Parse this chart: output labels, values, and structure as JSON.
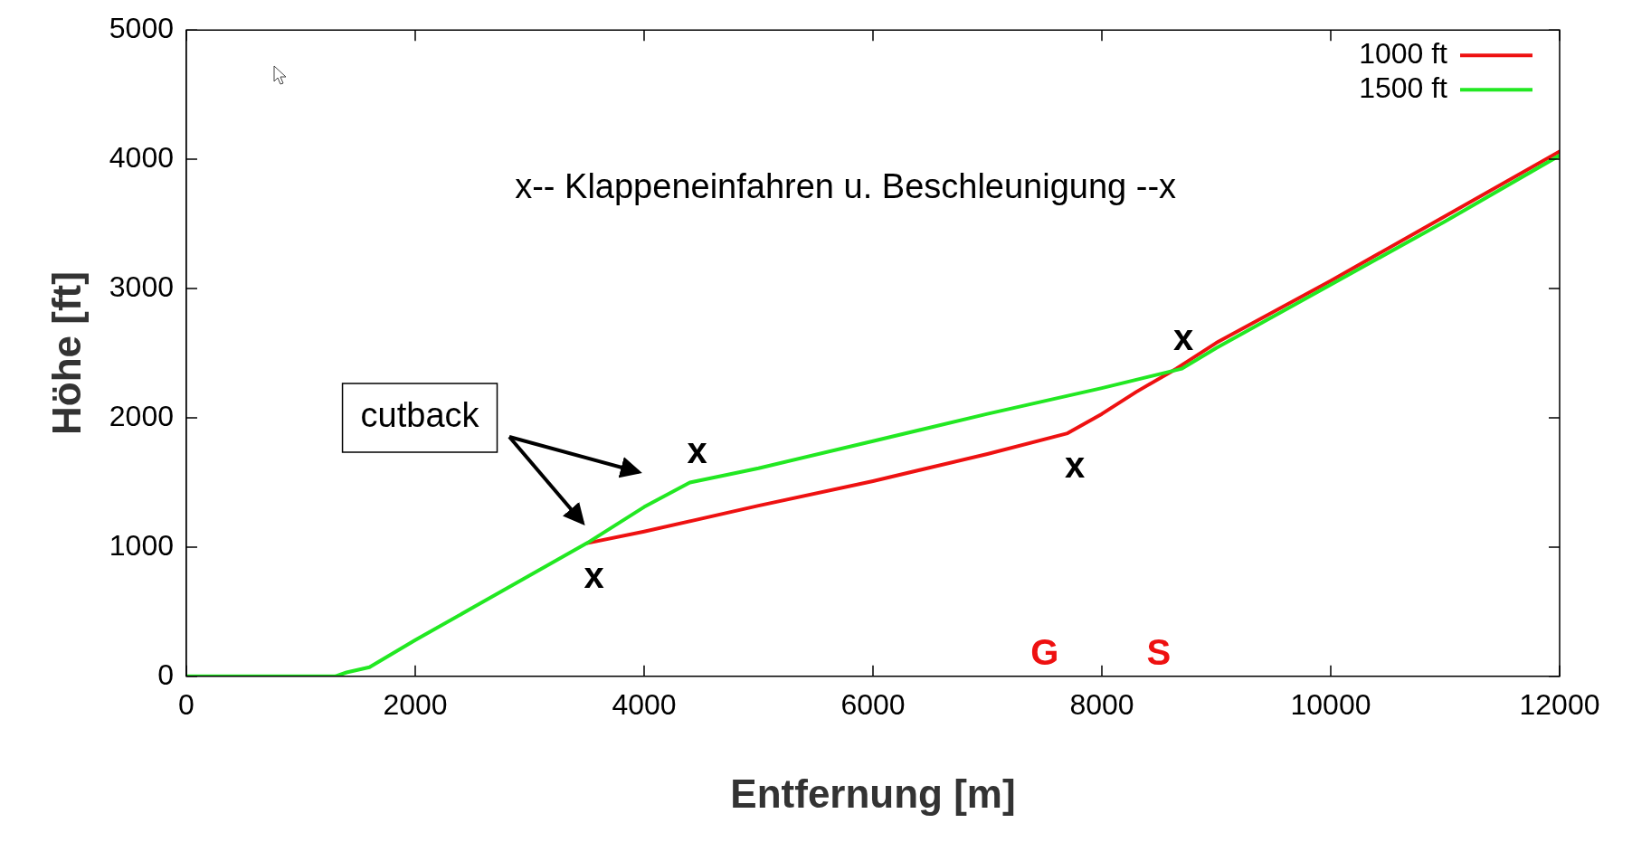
{
  "chart_data": {
    "type": "line",
    "xlabel": "Entfernung [m]",
    "ylabel": "Höhe [ft]",
    "xlim": [
      0,
      12000
    ],
    "xticks": [
      0,
      2000,
      4000,
      6000,
      8000,
      10000,
      12000
    ],
    "ylim": [
      0,
      5000
    ],
    "yticks": [
      0,
      1000,
      2000,
      3000,
      4000,
      5000
    ],
    "grid": false,
    "legend": "top right",
    "marker": "none",
    "line_style": "solid",
    "series": [
      {
        "name": "1000 ft",
        "color": "#ee1111",
        "x": [
          3500,
          4000,
          5000,
          6000,
          7000,
          7700,
          8000,
          8300,
          8650,
          9000,
          10000,
          11000,
          12000
        ],
        "values": [
          1030,
          1120,
          1320,
          1510,
          1720,
          1880,
          2030,
          2200,
          2380,
          2580,
          3060,
          3560,
          4060
        ]
      },
      {
        "name": "1500 ft",
        "color": "#22e822",
        "x": [
          0,
          1300,
          1400,
          1600,
          2000,
          2500,
          3000,
          3500,
          4000,
          4400,
          5000,
          6000,
          7000,
          8000,
          8700,
          9000,
          10000,
          11000,
          12000
        ],
        "values": [
          0,
          0,
          30,
          70,
          280,
          530,
          780,
          1030,
          1310,
          1500,
          1610,
          1820,
          2030,
          2230,
          2380,
          2540,
          3030,
          3520,
          4030
        ]
      }
    ],
    "annotations": [
      "x-- Klappeneinfahren u. Beschleunigung --x",
      "cutback",
      {
        "text": "x",
        "x": 3500,
        "y": 1030
      },
      {
        "text": "x",
        "x": 4400,
        "y": 1500
      },
      {
        "text": "x",
        "x": 7700,
        "y": 1880
      },
      {
        "text": "x",
        "x": 8650,
        "y": 2380
      },
      "G",
      "S"
    ]
  }
}
